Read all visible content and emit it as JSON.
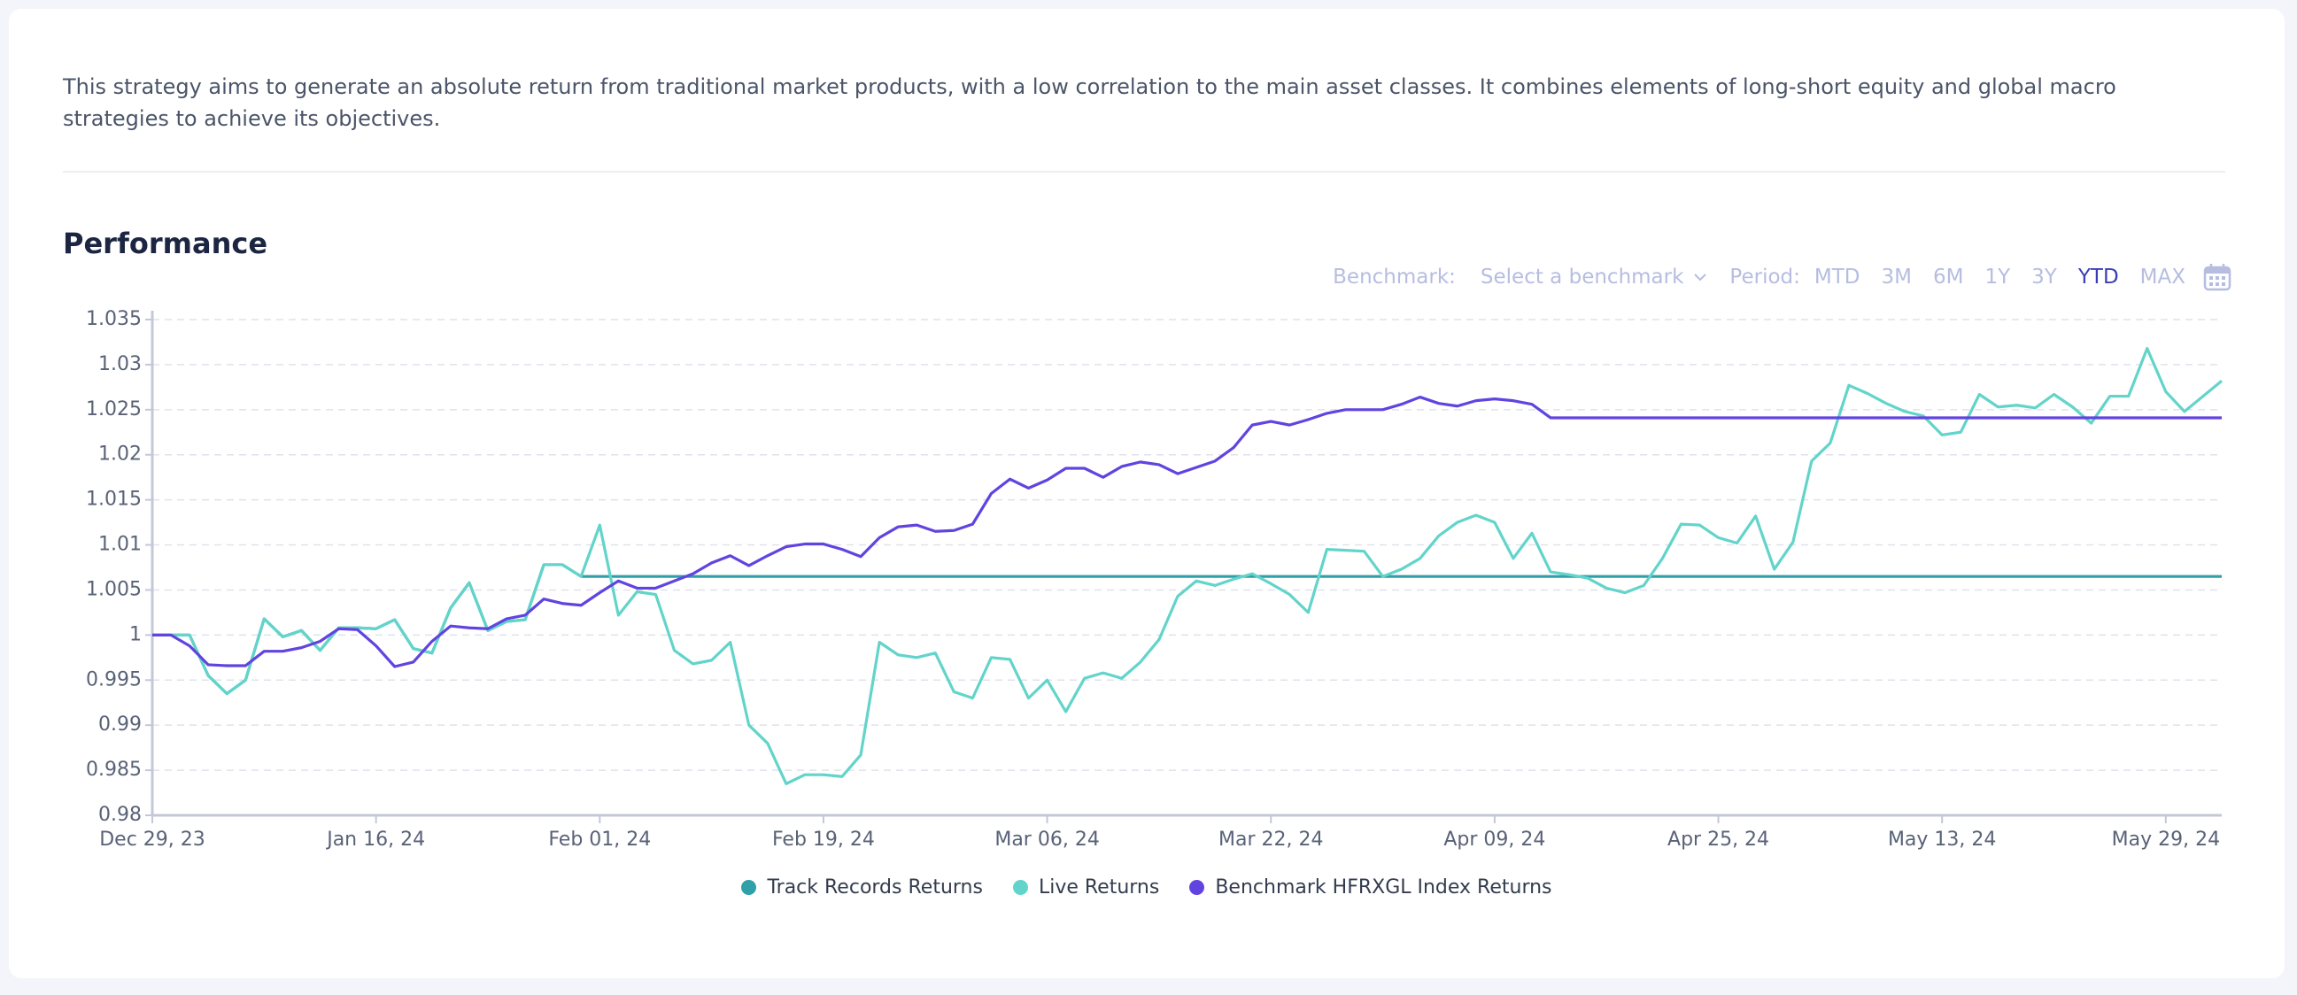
{
  "description": "This strategy aims to generate an absolute return from traditional market products, with a low correlation to the main asset classes. It combines elements of long-short equity and global macro strategies to achieve its objectives.",
  "heading": "Performance",
  "controls": {
    "benchmark_label": "Benchmark:",
    "benchmark_placeholder": "Select a benchmark",
    "period_label": "Period:",
    "periods": [
      "MTD",
      "3M",
      "6M",
      "1Y",
      "3Y",
      "YTD",
      "MAX"
    ],
    "active_period": "YTD"
  },
  "chart_data": {
    "type": "line",
    "categories": [
      "Dec 29, 23",
      null,
      null,
      null,
      null,
      null,
      null,
      null,
      null,
      null,
      null,
      null,
      "Jan 16, 24",
      null,
      null,
      null,
      null,
      null,
      null,
      null,
      null,
      null,
      null,
      null,
      "Feb 01, 24",
      null,
      null,
      null,
      null,
      null,
      null,
      null,
      null,
      null,
      null,
      null,
      "Feb 19, 24",
      null,
      null,
      null,
      null,
      null,
      null,
      null,
      null,
      null,
      null,
      null,
      "Mar 06, 24",
      null,
      null,
      null,
      null,
      null,
      null,
      null,
      null,
      null,
      null,
      null,
      "Mar 22, 24",
      null,
      null,
      null,
      null,
      null,
      null,
      null,
      null,
      null,
      null,
      null,
      "Apr 09, 24",
      null,
      null,
      null,
      null,
      null,
      null,
      null,
      null,
      null,
      null,
      null,
      "Apr 25, 24",
      null,
      null,
      null,
      null,
      null,
      null,
      null,
      null,
      null,
      null,
      null,
      "May 13, 24",
      null,
      null,
      null,
      null,
      null,
      null,
      null,
      null,
      null,
      null,
      null,
      "May 29, 24",
      null,
      null,
      null
    ],
    "ylim": [
      0.98,
      1.035
    ],
    "yticks": [
      0.98,
      0.985,
      0.99,
      0.995,
      1,
      1.005,
      1.01,
      1.015,
      1.02,
      1.025,
      1.03,
      1.035
    ],
    "grid": true,
    "series": [
      {
        "name": "Track Records Returns",
        "color": "#2f9fa8",
        "values": [
          1.0,
          1.0,
          1.0,
          0.9955,
          0.9935,
          0.995,
          1.0018,
          0.9998,
          1.0005,
          0.9983,
          1.0008,
          1.0008,
          1.0007,
          1.0017,
          0.9985,
          0.998,
          1.003,
          1.0058,
          1.0005,
          1.0015,
          1.0017,
          1.0078,
          1.0078,
          1.0065,
          1.0065,
          1.0065,
          1.0065,
          1.0065,
          1.0065,
          1.0065,
          1.0065,
          1.0065,
          1.0065,
          1.0065,
          1.0065,
          1.0065,
          1.0065,
          1.0065,
          1.0065,
          1.0065,
          1.0065,
          1.0065,
          1.0065,
          1.0065,
          1.0065,
          1.0065,
          1.0065,
          1.0065,
          1.0065,
          1.0065,
          1.0065,
          1.0065,
          1.0065,
          1.0065,
          1.0065,
          1.0065,
          1.0065,
          1.0065,
          1.0065,
          1.0065,
          1.0065,
          1.0065,
          1.0065,
          1.0065,
          1.0065,
          1.0065,
          1.0065,
          1.0065,
          1.0065,
          1.0065,
          1.0065,
          1.0065,
          1.0065,
          1.0065,
          1.0065,
          1.0065,
          1.0065,
          1.0065,
          1.0065,
          1.0065,
          1.0065,
          1.0065,
          1.0065,
          1.0065,
          1.0065,
          1.0065,
          1.0065,
          1.0065,
          1.0065,
          1.0065,
          1.0065,
          1.0065,
          1.0065,
          1.0065,
          1.0065,
          1.0065,
          1.0065,
          1.0065,
          1.0065,
          1.0065,
          1.0065,
          1.0065,
          1.0065,
          1.0065,
          1.0065,
          1.0065,
          1.0065,
          1.0065,
          1.0065,
          1.0065,
          1.0065,
          1.0065
        ]
      },
      {
        "name": "Live Returns",
        "color": "#62d4ca",
        "values": [
          1.0,
          1.0,
          1.0,
          0.9955,
          0.9935,
          0.995,
          1.0018,
          0.9998,
          1.0005,
          0.9983,
          1.0008,
          1.0008,
          1.0007,
          1.0017,
          0.9985,
          0.998,
          1.003,
          1.0058,
          1.0005,
          1.0015,
          1.0017,
          1.0078,
          1.0078,
          1.0065,
          1.0122,
          1.0022,
          1.0048,
          1.0045,
          0.9983,
          0.9968,
          0.9972,
          0.9992,
          0.99,
          0.988,
          0.9835,
          0.9845,
          0.9845,
          0.9843,
          0.9867,
          0.9992,
          0.9978,
          0.9975,
          0.998,
          0.9937,
          0.993,
          0.9975,
          0.9973,
          0.993,
          0.995,
          0.9915,
          0.9952,
          0.9958,
          0.9952,
          0.997,
          0.9995,
          1.0043,
          1.006,
          1.0055,
          1.0062,
          1.0068,
          1.0057,
          1.0045,
          1.0025,
          1.0095,
          1.0094,
          1.0093,
          1.0065,
          1.0073,
          1.0085,
          1.011,
          1.0125,
          1.0133,
          1.0125,
          1.0085,
          1.0113,
          1.007,
          1.0067,
          1.0063,
          1.0052,
          1.0047,
          1.0055,
          1.0085,
          1.0123,
          1.0122,
          1.0108,
          1.0102,
          1.0132,
          1.0073,
          1.0103,
          1.0193,
          1.0213,
          1.0277,
          1.0268,
          1.0257,
          1.0248,
          1.0243,
          1.0222,
          1.0225,
          1.0267,
          1.0253,
          1.0255,
          1.0252,
          1.0267,
          1.0253,
          1.0235,
          1.0265,
          1.0265,
          1.0318,
          1.027,
          1.0248,
          1.0265,
          1.0282
        ]
      },
      {
        "name": "Benchmark HFRXGL Index Returns",
        "color": "#6144e0",
        "values": [
          1.0,
          1.0,
          0.9988,
          0.9967,
          0.9966,
          0.9966,
          0.9982,
          0.9982,
          0.9986,
          0.9993,
          1.0007,
          1.0006,
          0.9988,
          0.9965,
          0.997,
          0.9993,
          1.001,
          1.0008,
          1.0007,
          1.0018,
          1.0022,
          1.004,
          1.0035,
          1.0033,
          1.0047,
          1.006,
          1.0052,
          1.0052,
          1.006,
          1.0068,
          1.008,
          1.0088,
          1.0077,
          1.0088,
          1.0098,
          1.0101,
          1.0101,
          1.0095,
          1.0087,
          1.0108,
          1.012,
          1.0122,
          1.0115,
          1.0116,
          1.0123,
          1.0157,
          1.0173,
          1.0163,
          1.0172,
          1.0185,
          1.0185,
          1.0175,
          1.0187,
          1.0192,
          1.0189,
          1.0179,
          1.0186,
          1.0193,
          1.0208,
          1.0233,
          1.0237,
          1.0233,
          1.0239,
          1.0246,
          1.025,
          1.025,
          1.025,
          1.0256,
          1.0264,
          1.0257,
          1.0254,
          1.026,
          1.0262,
          1.026,
          1.0256,
          1.0241,
          1.0241,
          1.0241,
          1.0241,
          1.0241,
          1.0241,
          1.0241,
          1.0241,
          1.0241,
          1.0241,
          1.0241,
          1.0241,
          1.0241,
          1.0241,
          1.0241,
          1.0241,
          1.0241,
          1.0241,
          1.0241,
          1.0241,
          1.0241,
          1.0241,
          1.0241,
          1.0241,
          1.0241,
          1.0241,
          1.0241,
          1.0241,
          1.0241,
          1.0241,
          1.0241,
          1.0241,
          1.0241,
          1.0241,
          1.0241,
          1.0241,
          1.0241
        ]
      }
    ]
  }
}
